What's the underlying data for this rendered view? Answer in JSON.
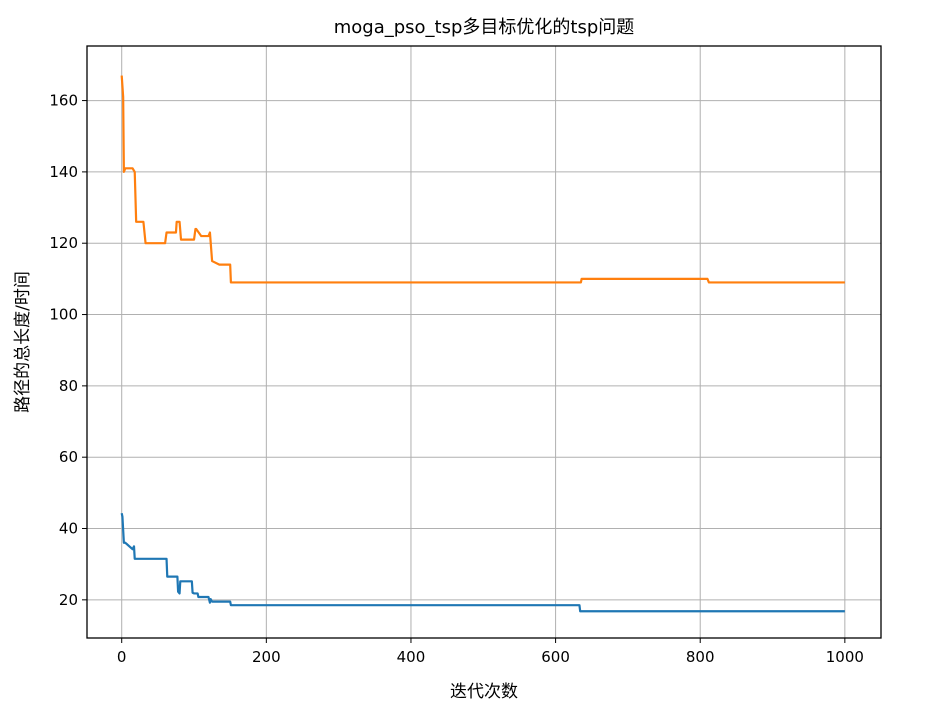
{
  "chart_data": {
    "type": "line",
    "title": "moga_pso_tsp多目标优化的tsp问题",
    "xlabel": "迭代次数",
    "ylabel": "路径的总长度/时间",
    "xlim": [
      -48,
      1050
    ],
    "ylim": [
      9.3,
      175.3
    ],
    "xticks": [
      0,
      200,
      400,
      600,
      800,
      1000
    ],
    "yticks": [
      20,
      40,
      60,
      80,
      100,
      120,
      140,
      160
    ],
    "grid": true,
    "series": [
      {
        "color": "#ff7f0e",
        "x": [
          0,
          2,
          3,
          5,
          10,
          15,
          18,
          20,
          30,
          33,
          60,
          62,
          75,
          76,
          80,
          82,
          100,
          102,
          103,
          110,
          111,
          120,
          122,
          125,
          135,
          150,
          151,
          152,
          635,
          636,
          810,
          812,
          1000
        ],
        "y": [
          167,
          161,
          140,
          141,
          141,
          141,
          140,
          126,
          126,
          120,
          120,
          123,
          123,
          126,
          126,
          121,
          121,
          124,
          124,
          122,
          122,
          122,
          123,
          115,
          114,
          114,
          109,
          109,
          109,
          110,
          110,
          109,
          109
        ]
      },
      {
        "color": "#1f77b4",
        "x": [
          0,
          1,
          3,
          4,
          5,
          15,
          17,
          18,
          20,
          62,
          63,
          77,
          78,
          80,
          81,
          82,
          97,
          98,
          100,
          105,
          106,
          120,
          122,
          123,
          125,
          135,
          150,
          151,
          633,
          634,
          1000
        ],
        "y": [
          44.3,
          43.3,
          36,
          36,
          36,
          34.2,
          35,
          31.5,
          31.5,
          31.5,
          26.5,
          26.5,
          22.3,
          21.8,
          25.2,
          25.2,
          25.2,
          22,
          21.8,
          21.8,
          20.8,
          20.8,
          19.2,
          20.2,
          19.5,
          19.5,
          19.5,
          18.5,
          18.5,
          16.8,
          16.8
        ]
      }
    ]
  }
}
